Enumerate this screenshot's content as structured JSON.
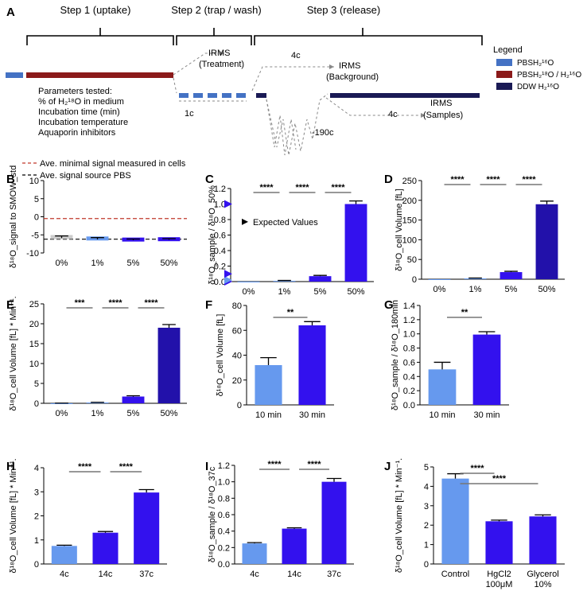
{
  "colors": {
    "light": "#6699ee",
    "mid": "#3311ee",
    "dark": "#2211aa",
    "grey": "#cccccc",
    "pbs_h2o": "#4472c4",
    "pbs_mix": "#8b1a1a",
    "ddw": "#1a1a55",
    "red_dashed": "#c0392b",
    "sig_line": "#888888"
  },
  "panel_A": {
    "letter": "A",
    "step1": "Step 1 (uptake)",
    "step2": "Step 2 (trap / wash)",
    "step3": "Step 3 (release)",
    "irms_treatment_1": "IRMS",
    "irms_treatment_2": "(Treatment)",
    "irms_background_1": "IRMS",
    "irms_background_2": "(Background)",
    "irms_samples_1": "IRMS",
    "irms_samples_2": "(Samples)",
    "temp_4c_top": "4c",
    "temp_1c": "1c",
    "temp_minus190": "-190c",
    "temp_4c_bottom": "4c",
    "params": [
      "Parameters tested:",
      "% of H₂¹⁸O in medium",
      "Incubation time (min)",
      "Incubation temperature",
      "Aquaporin inhibitors"
    ],
    "legend_title": "Legend",
    "legend": [
      "PBSH₂¹⁶O",
      "PBSH₂¹⁸O / H₂¹⁶O",
      "DDW H₂¹⁶O"
    ]
  },
  "chart_data": [
    {
      "panel": "B",
      "type": "bar",
      "ylabel": "δ¹⁸O_signal to SMOW_std",
      "categories": [
        "0%",
        "1%",
        "5%",
        "50%"
      ],
      "values": [
        -5.6,
        -6.0,
        -6.3,
        -6.2
      ],
      "errors": [
        0.3,
        0.25,
        0.15,
        0.15
      ],
      "ylim": [
        -10,
        10
      ],
      "yticks": [
        -10,
        -5,
        0,
        5,
        10
      ],
      "legend": [
        "Ave. minimal signal measured in cells",
        "Ave. signal source PBS"
      ],
      "ref_lines": [
        -0.5,
        -6.2
      ]
    },
    {
      "panel": "C",
      "type": "bar",
      "ylabel": "δ¹⁸O_sample / δ¹⁸O_50%",
      "categories": [
        "0%",
        "1%",
        "5%",
        "50%"
      ],
      "values": [
        0.0,
        0.01,
        0.07,
        1.0
      ],
      "errors": [
        0.0,
        0.005,
        0.01,
        0.04
      ],
      "ylim": [
        0,
        1.2
      ],
      "yticks": [
        0.0,
        0.2,
        0.4,
        0.6,
        0.8,
        1.0,
        1.2
      ],
      "expected": [
        0.0,
        0.02,
        0.1,
        1.0
      ],
      "annotation": "Expected Values",
      "sig": [
        {
          "from": 0,
          "to": 1,
          "label": "****"
        },
        {
          "from": 1,
          "to": 2,
          "label": "****"
        },
        {
          "from": 2,
          "to": 3,
          "label": "****"
        }
      ]
    },
    {
      "panel": "D",
      "type": "bar",
      "ylabel": "δ¹⁸O_cell Volume [fL]",
      "categories": [
        "0%",
        "1%",
        "5%",
        "50%"
      ],
      "values": [
        0.0,
        2.0,
        18.0,
        190.0
      ],
      "errors": [
        0.0,
        1.0,
        2.0,
        8.0
      ],
      "ylim": [
        0,
        250
      ],
      "yticks": [
        0,
        50,
        100,
        150,
        200,
        250
      ],
      "sig": [
        {
          "from": 0,
          "to": 1,
          "label": "****"
        },
        {
          "from": 1,
          "to": 2,
          "label": "****"
        },
        {
          "from": 2,
          "to": 3,
          "label": "****"
        }
      ]
    },
    {
      "panel": "E",
      "type": "bar",
      "ylabel": "δ¹⁸O_cell Volume [fL] * Min⁻¹.",
      "categories": [
        "0%",
        "1%",
        "5%",
        "50%"
      ],
      "values": [
        0.0,
        0.2,
        1.7,
        19.0
      ],
      "errors": [
        0.05,
        0.05,
        0.2,
        0.8
      ],
      "ylim": [
        0,
        25
      ],
      "yticks": [
        0,
        5,
        10,
        15,
        20,
        25
      ],
      "sig": [
        {
          "from": 0,
          "to": 1,
          "label": "***"
        },
        {
          "from": 1,
          "to": 2,
          "label": "****"
        },
        {
          "from": 2,
          "to": 3,
          "label": "****"
        }
      ]
    },
    {
      "panel": "F",
      "type": "bar",
      "ylabel": "δ¹⁸O_cell Volume [fL]",
      "categories": [
        "10 min",
        "30 min"
      ],
      "values": [
        32.0,
        64.0
      ],
      "errors": [
        6.0,
        3.0
      ],
      "ylim": [
        0,
        80
      ],
      "yticks": [
        0,
        20,
        40,
        60,
        80
      ],
      "sig": [
        {
          "from": 0,
          "to": 1,
          "label": "**"
        }
      ]
    },
    {
      "panel": "G",
      "type": "bar",
      "ylabel": "δ¹⁸O_sample / δ¹⁸O_180min",
      "categories": [
        "10 min",
        "30 min"
      ],
      "values": [
        0.5,
        0.99
      ],
      "errors": [
        0.1,
        0.04
      ],
      "ylim": [
        0,
        1.4
      ],
      "yticks": [
        0.0,
        0.2,
        0.4,
        0.6,
        0.8,
        1.0,
        1.2,
        1.4
      ],
      "sig": [
        {
          "from": 0,
          "to": 1,
          "label": "**"
        }
      ]
    },
    {
      "panel": "H",
      "type": "bar",
      "ylabel": "δ¹⁸O_cell Volume [fL] * Min⁻¹.",
      "categories": [
        "4c",
        "14c",
        "37c"
      ],
      "values": [
        0.75,
        1.3,
        2.97
      ],
      "errors": [
        0.03,
        0.05,
        0.12
      ],
      "ylim": [
        0,
        4
      ],
      "yticks": [
        0,
        1,
        2,
        3,
        4
      ],
      "sig": [
        {
          "from": 0,
          "to": 1,
          "label": "****"
        },
        {
          "from": 1,
          "to": 2,
          "label": "****"
        }
      ]
    },
    {
      "panel": "I",
      "type": "bar",
      "ylabel": "δ¹⁸O_sample / δ¹⁸O_37c",
      "categories": [
        "4c",
        "14c",
        "37c"
      ],
      "values": [
        0.25,
        0.43,
        1.0
      ],
      "errors": [
        0.01,
        0.01,
        0.04
      ],
      "ylim": [
        0,
        1.2
      ],
      "yticks": [
        0.0,
        0.2,
        0.4,
        0.6,
        0.8,
        1.0,
        1.2
      ],
      "sig": [
        {
          "from": 0,
          "to": 1,
          "label": "****"
        },
        {
          "from": 1,
          "to": 2,
          "label": "****"
        }
      ]
    },
    {
      "panel": "J",
      "type": "bar",
      "ylabel": "δ¹⁸O_cell Volume [fL] * Min⁻¹.",
      "categories": [
        "Control",
        "HgCl2 100μM",
        "Glycerol 10%"
      ],
      "values": [
        4.4,
        2.2,
        2.45
      ],
      "errors": [
        0.25,
        0.06,
        0.08
      ],
      "ylim": [
        0,
        5
      ],
      "yticks": [
        0,
        1,
        2,
        3,
        4,
        5
      ],
      "sig": [
        {
          "from": 0,
          "to": 1,
          "label": "****"
        },
        {
          "from": 0,
          "to": 2,
          "label": "****"
        }
      ]
    }
  ]
}
